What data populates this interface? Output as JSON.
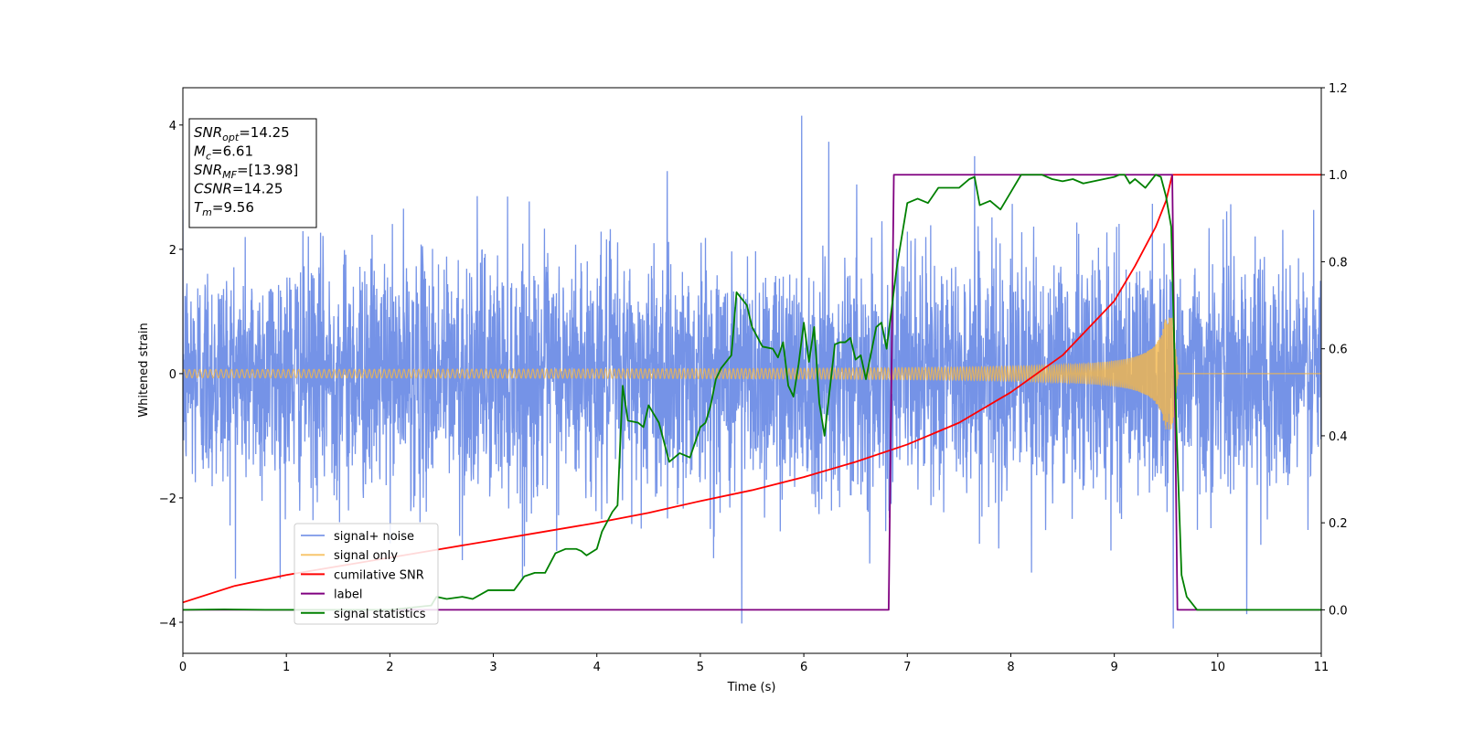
{
  "chart_data": {
    "type": "line",
    "xlabel": "Time (s)",
    "ylabel_left": "Whitened strain",
    "ylabel_right": "",
    "xlim": [
      0,
      11
    ],
    "ylim_left": [
      -4.5,
      4.6
    ],
    "ylim_right": [
      -0.1,
      1.2
    ],
    "grid": false,
    "legend_position": "lower-left",
    "x_ticks": [
      "0",
      "1",
      "2",
      "3",
      "4",
      "5",
      "6",
      "7",
      "8",
      "9",
      "10",
      "11"
    ],
    "x_tick_values": [
      0,
      1,
      2,
      3,
      4,
      5,
      6,
      7,
      8,
      9,
      10,
      11
    ],
    "y_left_ticks": [
      "−4",
      "−2",
      "0",
      "2",
      "4"
    ],
    "y_left_tick_values": [
      -4,
      -2,
      0,
      2,
      4
    ],
    "y_right_ticks": [
      "0.0",
      "0.2",
      "0.4",
      "0.6",
      "0.8",
      "1.0",
      "1.2"
    ],
    "y_right_tick_values": [
      0.0,
      0.2,
      0.4,
      0.6,
      0.8,
      1.0,
      1.2
    ],
    "info_box": [
      {
        "var": "SNR",
        "sub": "opt",
        "value": "=14.25"
      },
      {
        "var": "M",
        "sub": "c",
        "value": "=6.61"
      },
      {
        "var": "SNR",
        "sub": "MF",
        "value": "=[13.98]"
      },
      {
        "var": "CSNR",
        "sub": "",
        "value": "=14.25"
      },
      {
        "var": "T",
        "sub": "m",
        "value": "=9.56"
      }
    ],
    "series": [
      {
        "name": "signal+ noise",
        "axis": "left",
        "color": "#6e8de6",
        "kind": "noise",
        "sigma": 0.95,
        "spikes": [
          [
            5.98,
            4.15
          ],
          [
            6.24,
            3.73
          ],
          [
            5.4,
            -4.02
          ],
          [
            9.57,
            -4.1
          ],
          [
            10.28,
            -3.87
          ],
          [
            7.65,
            3.5
          ],
          [
            2.7,
            -3.0
          ],
          [
            3.3,
            -3.1
          ],
          [
            8.2,
            -3.2
          ]
        ]
      },
      {
        "name": "signal only",
        "axis": "left",
        "color": "#f5b84a",
        "kind": "chirp",
        "start_amp": 0.05,
        "end_amp": 0.9,
        "merger_time": 9.56,
        "ringdown_end": 9.62
      },
      {
        "name": "cumilative SNR",
        "axis": "right",
        "color": "#ff0000",
        "x": [
          0,
          0.5,
          1,
          1.5,
          2,
          2.5,
          3,
          3.5,
          4,
          4.5,
          5,
          5.5,
          6,
          6.5,
          7,
          7.5,
          8,
          8.5,
          9,
          9.2,
          9.4,
          9.5,
          9.56,
          11
        ],
        "y": [
          0.017,
          0.055,
          0.08,
          0.1,
          0.12,
          0.14,
          0.16,
          0.18,
          0.2,
          0.223,
          0.25,
          0.275,
          0.305,
          0.34,
          0.38,
          0.43,
          0.5,
          0.585,
          0.71,
          0.79,
          0.88,
          0.94,
          1.0,
          1.0
        ]
      },
      {
        "name": "label",
        "axis": "right",
        "color": "#800080",
        "x": [
          0,
          6.82,
          6.87,
          9.56,
          9.61,
          11
        ],
        "y": [
          0,
          0,
          1,
          1,
          0,
          0
        ]
      },
      {
        "name": "signal statistics",
        "axis": "right",
        "color": "#008000",
        "x": [
          0,
          0.4,
          0.8,
          1.2,
          1.6,
          2.0,
          2.4,
          2.45,
          2.55,
          2.7,
          2.8,
          2.95,
          3.05,
          3.2,
          3.3,
          3.4,
          3.5,
          3.6,
          3.7,
          3.8,
          3.85,
          3.9,
          4.0,
          4.05,
          4.15,
          4.2,
          4.25,
          4.3,
          4.4,
          4.45,
          4.5,
          4.6,
          4.7,
          4.8,
          4.9,
          5.0,
          5.05,
          5.1,
          5.15,
          5.2,
          5.3,
          5.35,
          5.45,
          5.5,
          5.6,
          5.7,
          5.75,
          5.8,
          5.85,
          5.9,
          5.95,
          6.0,
          6.05,
          6.1,
          6.15,
          6.2,
          6.3,
          6.35,
          6.4,
          6.45,
          6.5,
          6.55,
          6.6,
          6.7,
          6.75,
          6.8,
          6.9,
          7.0,
          7.1,
          7.2,
          7.3,
          7.4,
          7.5,
          7.6,
          7.65,
          7.7,
          7.8,
          7.9,
          8.0,
          8.1,
          8.2,
          8.3,
          8.4,
          8.5,
          8.6,
          8.7,
          8.8,
          8.9,
          9.0,
          9.05,
          9.1,
          9.15,
          9.2,
          9.3,
          9.4,
          9.45,
          9.5,
          9.55,
          9.6,
          9.65,
          9.7,
          9.8,
          10.0,
          11.0
        ],
        "y": [
          0,
          0.001,
          0,
          0,
          0,
          0,
          0.01,
          0.03,
          0.025,
          0.03,
          0.025,
          0.045,
          0.045,
          0.045,
          0.077,
          0.085,
          0.085,
          0.13,
          0.14,
          0.14,
          0.135,
          0.125,
          0.14,
          0.18,
          0.225,
          0.24,
          0.515,
          0.435,
          0.43,
          0.42,
          0.47,
          0.43,
          0.34,
          0.36,
          0.35,
          0.42,
          0.43,
          0.47,
          0.53,
          0.555,
          0.585,
          0.73,
          0.7,
          0.65,
          0.605,
          0.6,
          0.58,
          0.615,
          0.515,
          0.49,
          0.565,
          0.66,
          0.57,
          0.65,
          0.475,
          0.4,
          0.61,
          0.615,
          0.615,
          0.625,
          0.575,
          0.585,
          0.53,
          0.65,
          0.66,
          0.6,
          0.79,
          0.935,
          0.945,
          0.935,
          0.97,
          0.97,
          0.97,
          0.99,
          0.995,
          0.93,
          0.94,
          0.92,
          0.96,
          1.0,
          1.0,
          1.0,
          0.99,
          0.985,
          0.99,
          0.98,
          0.985,
          0.99,
          0.995,
          1.0,
          1.0,
          0.98,
          0.99,
          0.97,
          1.0,
          0.995,
          0.95,
          0.88,
          0.42,
          0.08,
          0.03,
          0.0,
          0.0,
          0.0
        ]
      }
    ]
  }
}
